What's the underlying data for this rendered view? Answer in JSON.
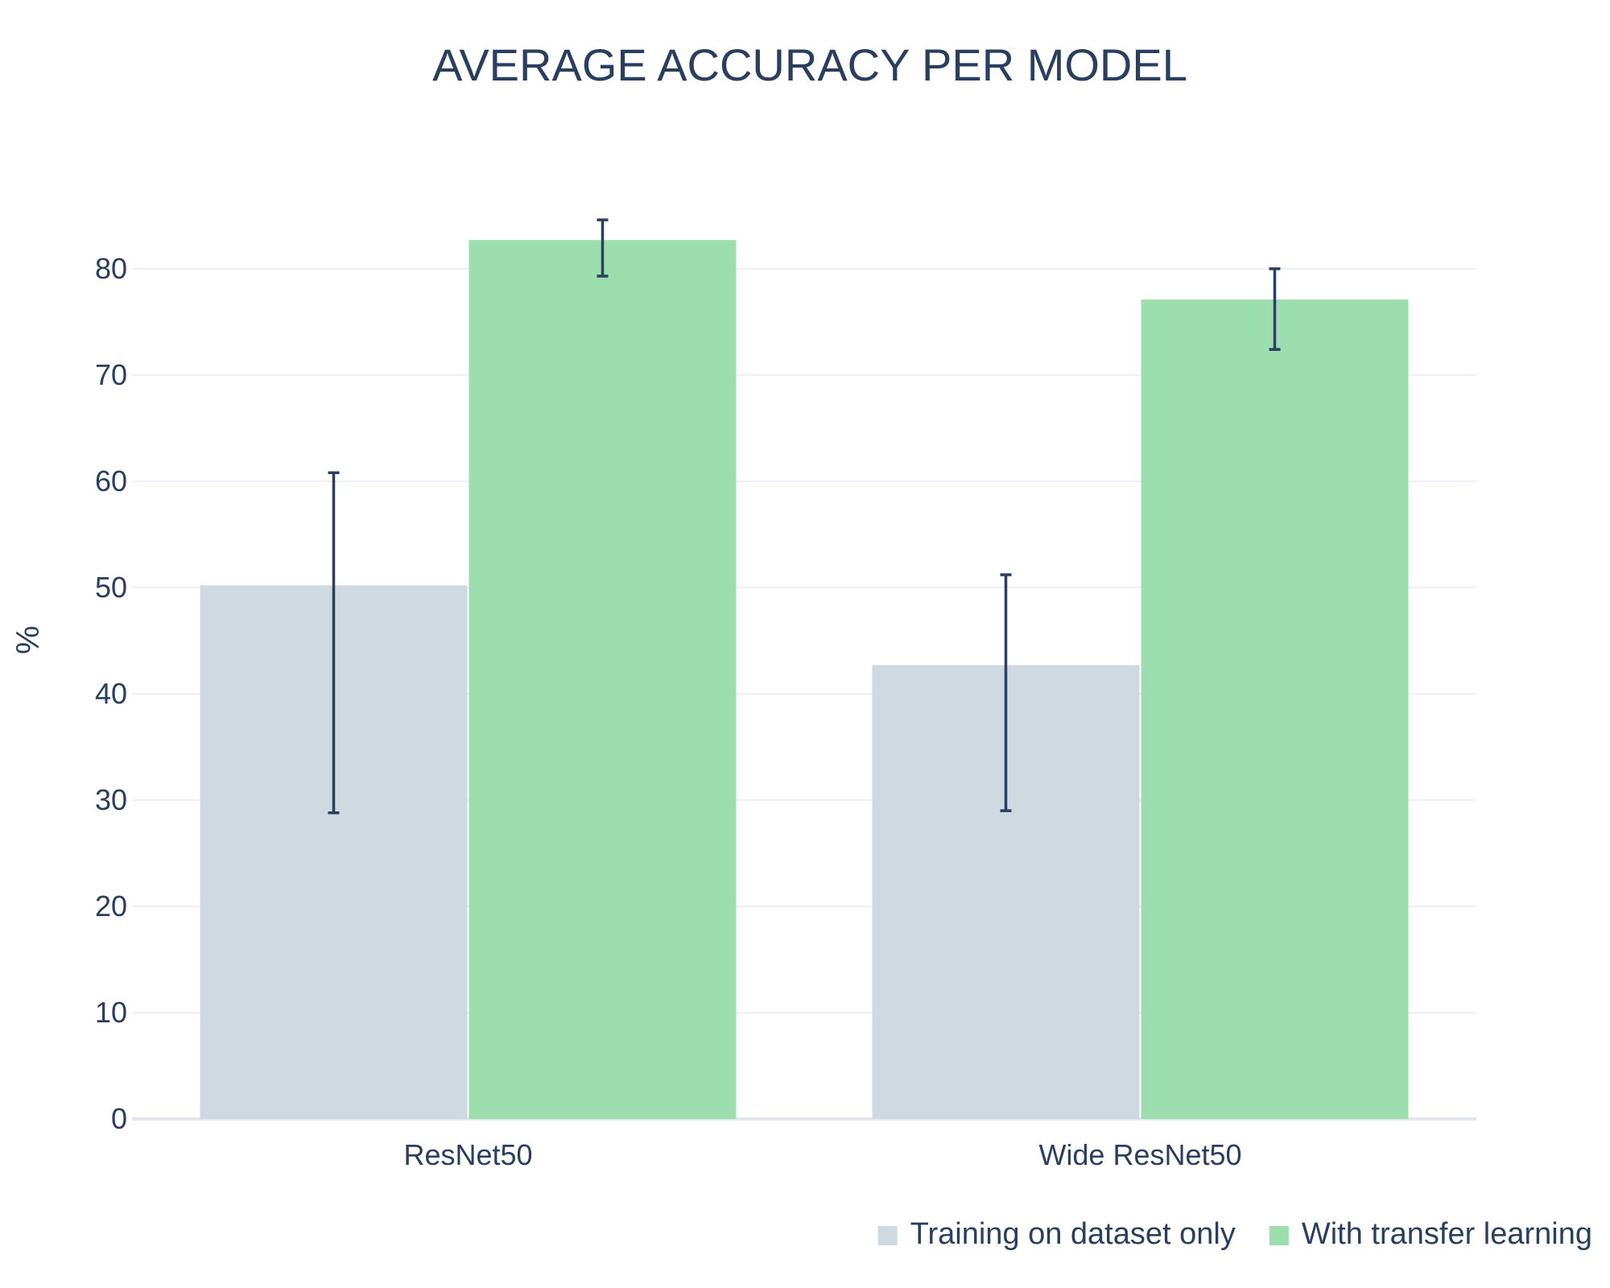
{
  "chart_data": {
    "type": "bar",
    "title": "AVERAGE ACCURACY PER MODEL",
    "xlabel": "",
    "ylabel": "%",
    "categories": [
      "ResNet50",
      "Wide ResNet50"
    ],
    "series": [
      {
        "name": "Training on dataset only",
        "color": "#cfd9e1",
        "values": [
          50.2,
          42.7
        ],
        "error_low": [
          28.8,
          29.0
        ],
        "error_high": [
          60.8,
          51.2
        ]
      },
      {
        "name": "With transfer learning",
        "color": "#9ddeae",
        "values": [
          82.7,
          77.1
        ],
        "error_low": [
          79.3,
          72.4
        ],
        "error_high": [
          84.6,
          80.0
        ]
      }
    ],
    "ylim": [
      0,
      86.5
    ],
    "yticks": [
      0,
      10,
      20,
      30,
      40,
      50,
      60,
      70,
      80
    ],
    "grid": true,
    "legend": "bottom-right, horizontal"
  }
}
